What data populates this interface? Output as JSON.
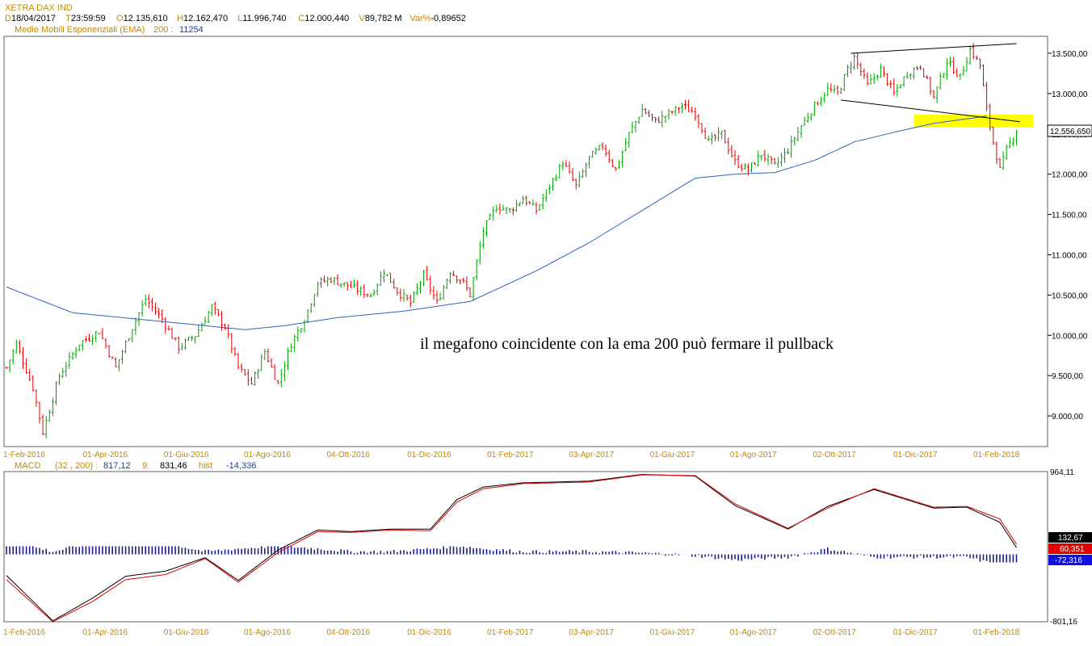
{
  "header": {
    "symbol": "XETRA DAX IND",
    "quote": [
      {
        "k": "D",
        "v": "18/04/2017"
      },
      {
        "k": "T",
        "v": "23:59:59"
      },
      {
        "k": "O",
        "v": "12.135,610"
      },
      {
        "k": "H",
        "v": "12.162,470"
      },
      {
        "k": "L",
        "v": "11.996,740"
      },
      {
        "k": "C",
        "v": "12.000,440"
      },
      {
        "k": "V",
        "v": "89,782 M"
      },
      {
        "k": "Var%",
        "v": "-0,89652"
      }
    ],
    "indicator_label": "Medie Mobili Esponenziali (EMA)",
    "indicator_param": "200 :",
    "indicator_value": "11254"
  },
  "annotation": "il megafono coincidente con la ema 200 può fermare il pullback",
  "colors": {
    "up": "#00a000",
    "down": "#e00000",
    "ema": "#3060c0",
    "macd": "#000000",
    "signal": "#e00000",
    "hist": "#1a1a8c",
    "highlight": "#ffff00",
    "date_label": "#c08a00",
    "header_label": "#c08a00"
  },
  "chart_data": [
    {
      "type": "candlestick",
      "title": "XETRA DAX IND",
      "x_tick_labels": [
        "1-Feb-2016",
        "01-Apr-2016",
        "01-Giu-2016",
        "01-Ago-2016",
        "04-Ott-2016",
        "01-Dic-2016",
        "01-Feb-2017",
        "03-Apr-2017",
        "01-Giu-2017",
        "01-Ago-2017",
        "02-Ott-2017",
        "01-Dic-2017",
        "01-Feb-2018"
      ],
      "y_ticks": [
        9000,
        9500,
        10000,
        10500,
        11000,
        11500,
        12000,
        12500,
        13000,
        13500
      ],
      "y_tick_labels": [
        "9.000,00",
        "9.500,00",
        "10.000,00",
        "10.500,00",
        "11.000,00",
        "11.500,00",
        "12.000,00",
        "12.500,00",
        "13.000,00",
        "13.500,00"
      ],
      "ylim": [
        8650,
        13680
      ],
      "last_value_label": "12.556,650",
      "price_path": [
        [
          0,
          9600
        ],
        [
          3,
          9900
        ],
        [
          8,
          9350
        ],
        [
          11,
          8800
        ],
        [
          16,
          9500
        ],
        [
          22,
          9900
        ],
        [
          28,
          10050
        ],
        [
          33,
          9600
        ],
        [
          38,
          10100
        ],
        [
          42,
          10450
        ],
        [
          47,
          10200
        ],
        [
          52,
          9850
        ],
        [
          57,
          10000
        ],
        [
          62,
          10350
        ],
        [
          66,
          10100
        ],
        [
          70,
          9600
        ],
        [
          74,
          9400
        ],
        [
          78,
          9800
        ],
        [
          82,
          9400
        ],
        [
          86,
          9900
        ],
        [
          90,
          10200
        ],
        [
          94,
          10650
        ],
        [
          98,
          10700
        ],
        [
          104,
          10600
        ],
        [
          110,
          10500
        ],
        [
          114,
          10800
        ],
        [
          118,
          10550
        ],
        [
          122,
          10400
        ],
        [
          126,
          10750
        ],
        [
          130,
          10400
        ],
        [
          134,
          10800
        ],
        [
          138,
          10650
        ],
        [
          140,
          10500
        ],
        [
          144,
          11300
        ],
        [
          148,
          11600
        ],
        [
          152,
          11550
        ],
        [
          156,
          11700
        ],
        [
          160,
          11550
        ],
        [
          164,
          11850
        ],
        [
          168,
          12150
        ],
        [
          172,
          11850
        ],
        [
          176,
          12200
        ],
        [
          180,
          12350
        ],
        [
          184,
          12050
        ],
        [
          188,
          12500
        ],
        [
          192,
          12800
        ],
        [
          196,
          12650
        ],
        [
          200,
          12750
        ],
        [
          204,
          12850
        ],
        [
          208,
          12750
        ],
        [
          212,
          12400
        ],
        [
          216,
          12500
        ],
        [
          220,
          12150
        ],
        [
          224,
          12050
        ],
        [
          228,
          12250
        ],
        [
          232,
          12100
        ],
        [
          236,
          12300
        ],
        [
          240,
          12600
        ],
        [
          244,
          12850
        ],
        [
          248,
          13050
        ],
        [
          251,
          13000
        ],
        [
          254,
          13300
        ],
        [
          256,
          13450
        ],
        [
          260,
          13100
        ],
        [
          264,
          13300
        ],
        [
          268,
          13000
        ],
        [
          272,
          13250
        ],
        [
          276,
          13350
        ],
        [
          280,
          12950
        ],
        [
          284,
          13400
        ],
        [
          288,
          13200
        ],
        [
          291,
          13550
        ],
        [
          294,
          13350
        ],
        [
          296,
          12800
        ],
        [
          298,
          12400
        ],
        [
          300,
          12050
        ],
        [
          302,
          12300
        ],
        [
          305,
          12550
        ]
      ],
      "ema200_path": [
        [
          0,
          10600
        ],
        [
          20,
          10280
        ],
        [
          40,
          10200
        ],
        [
          60,
          10120
        ],
        [
          72,
          10070
        ],
        [
          84,
          10120
        ],
        [
          100,
          10220
        ],
        [
          120,
          10300
        ],
        [
          140,
          10420
        ],
        [
          160,
          10800
        ],
        [
          176,
          11150
        ],
        [
          192,
          11550
        ],
        [
          208,
          11950
        ],
        [
          220,
          12000
        ],
        [
          232,
          12020
        ],
        [
          244,
          12170
        ],
        [
          256,
          12400
        ],
        [
          268,
          12520
        ],
        [
          280,
          12630
        ],
        [
          296,
          12720
        ]
      ],
      "megaphone_upper": [
        [
          255,
          13500
        ],
        [
          305,
          13620
        ]
      ],
      "megaphone_lower": [
        [
          252,
          12920
        ],
        [
          306,
          12650
        ]
      ],
      "highlight_zone": {
        "x_range": [
          274,
          310
        ],
        "y_range": [
          12580,
          12740
        ]
      }
    },
    {
      "type": "line",
      "title": "MACD",
      "params": "(32 , 200) :",
      "series": [
        {
          "name": "MACD",
          "value_label": "817,12",
          "color": "#000000",
          "path": [
            [
              0,
              -250
            ],
            [
              14,
              -790
            ],
            [
              26,
              -520
            ],
            [
              36,
              -260
            ],
            [
              48,
              -200
            ],
            [
              60,
              -40
            ],
            [
              70,
              -310
            ],
            [
              82,
              50
            ],
            [
              94,
              290
            ],
            [
              104,
              270
            ],
            [
              116,
              300
            ],
            [
              128,
              300
            ],
            [
              136,
              650
            ],
            [
              144,
              800
            ],
            [
              156,
              850
            ],
            [
              176,
              870
            ],
            [
              192,
              950
            ],
            [
              208,
              930
            ],
            [
              220,
              580
            ],
            [
              236,
              300
            ],
            [
              248,
              570
            ],
            [
              262,
              770
            ],
            [
              280,
              550
            ],
            [
              290,
              560
            ],
            [
              300,
              380
            ],
            [
              305,
              80
            ]
          ]
        },
        {
          "name": "9:",
          "value_label": "831,46",
          "color": "#e00000",
          "path": [
            [
              0,
              -300
            ],
            [
              14,
              -800
            ],
            [
              26,
              -560
            ],
            [
              36,
              -300
            ],
            [
              48,
              -240
            ],
            [
              60,
              -50
            ],
            [
              70,
              -330
            ],
            [
              82,
              20
            ],
            [
              94,
              270
            ],
            [
              104,
              260
            ],
            [
              116,
              290
            ],
            [
              128,
              280
            ],
            [
              136,
              620
            ],
            [
              144,
              780
            ],
            [
              156,
              840
            ],
            [
              176,
              860
            ],
            [
              192,
              945
            ],
            [
              208,
              935
            ],
            [
              220,
              600
            ],
            [
              236,
              310
            ],
            [
              248,
              550
            ],
            [
              262,
              780
            ],
            [
              280,
              560
            ],
            [
              290,
              570
            ],
            [
              300,
              420
            ],
            [
              305,
              120
            ]
          ]
        }
      ],
      "hist": {
        "name": "hist",
        "value_label": "-14,336"
      },
      "right_labels": [
        "964,11",
        "132,67",
        "60,351",
        "-72,316",
        "-801,16"
      ],
      "ylim": [
        -801.16,
        964.11
      ]
    }
  ]
}
